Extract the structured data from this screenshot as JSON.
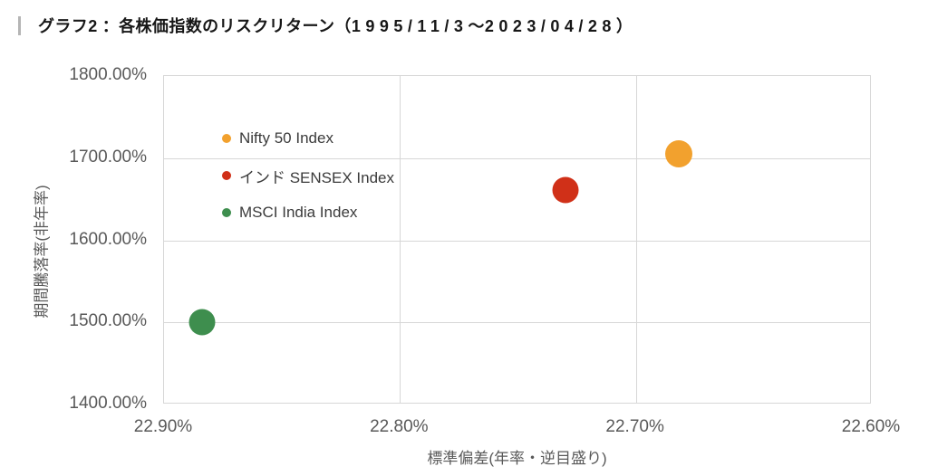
{
  "title": {
    "text": "グラフ2：各株価指数のリスクリターン（1995/11/3～2023/04/28）",
    "accent_bar_color": "#b5b5b5"
  },
  "chart_data": {
    "type": "scatter",
    "title": "グラフ2：各株価指数のリスクリターン（1995/11/3～2023/04/28）",
    "xlabel": "標準偏差(年率・逆目盛り)",
    "ylabel": "期間騰落率(非年率)",
    "x_axis": {
      "ticks": [
        22.9,
        22.8,
        22.7,
        22.6
      ],
      "tick_labels": [
        "22.90%",
        "22.80%",
        "22.70%",
        "22.60%"
      ],
      "range": [
        22.9,
        22.6
      ],
      "reversed": true
    },
    "y_axis": {
      "ticks": [
        1800,
        1700,
        1600,
        1500,
        1400
      ],
      "tick_labels": [
        "1800.00%",
        "1700.00%",
        "1600.00%",
        "1500.00%",
        "1400.00%"
      ],
      "range": [
        1400,
        1800
      ]
    },
    "grid": true,
    "legend_position": "inside-top-left",
    "series": [
      {
        "name": "Nifty 50 Index",
        "color": "#f2a12e",
        "x": 22.682,
        "y": 1705,
        "marker_size": 30
      },
      {
        "name": "インド SENSEX Index",
        "color": "#d03018",
        "x": 22.73,
        "y": 1661,
        "marker_size": 29
      },
      {
        "name": "MSCI India Index",
        "color": "#3e8e4e",
        "x": 22.884,
        "y": 1500,
        "marker_size": 29
      }
    ]
  }
}
